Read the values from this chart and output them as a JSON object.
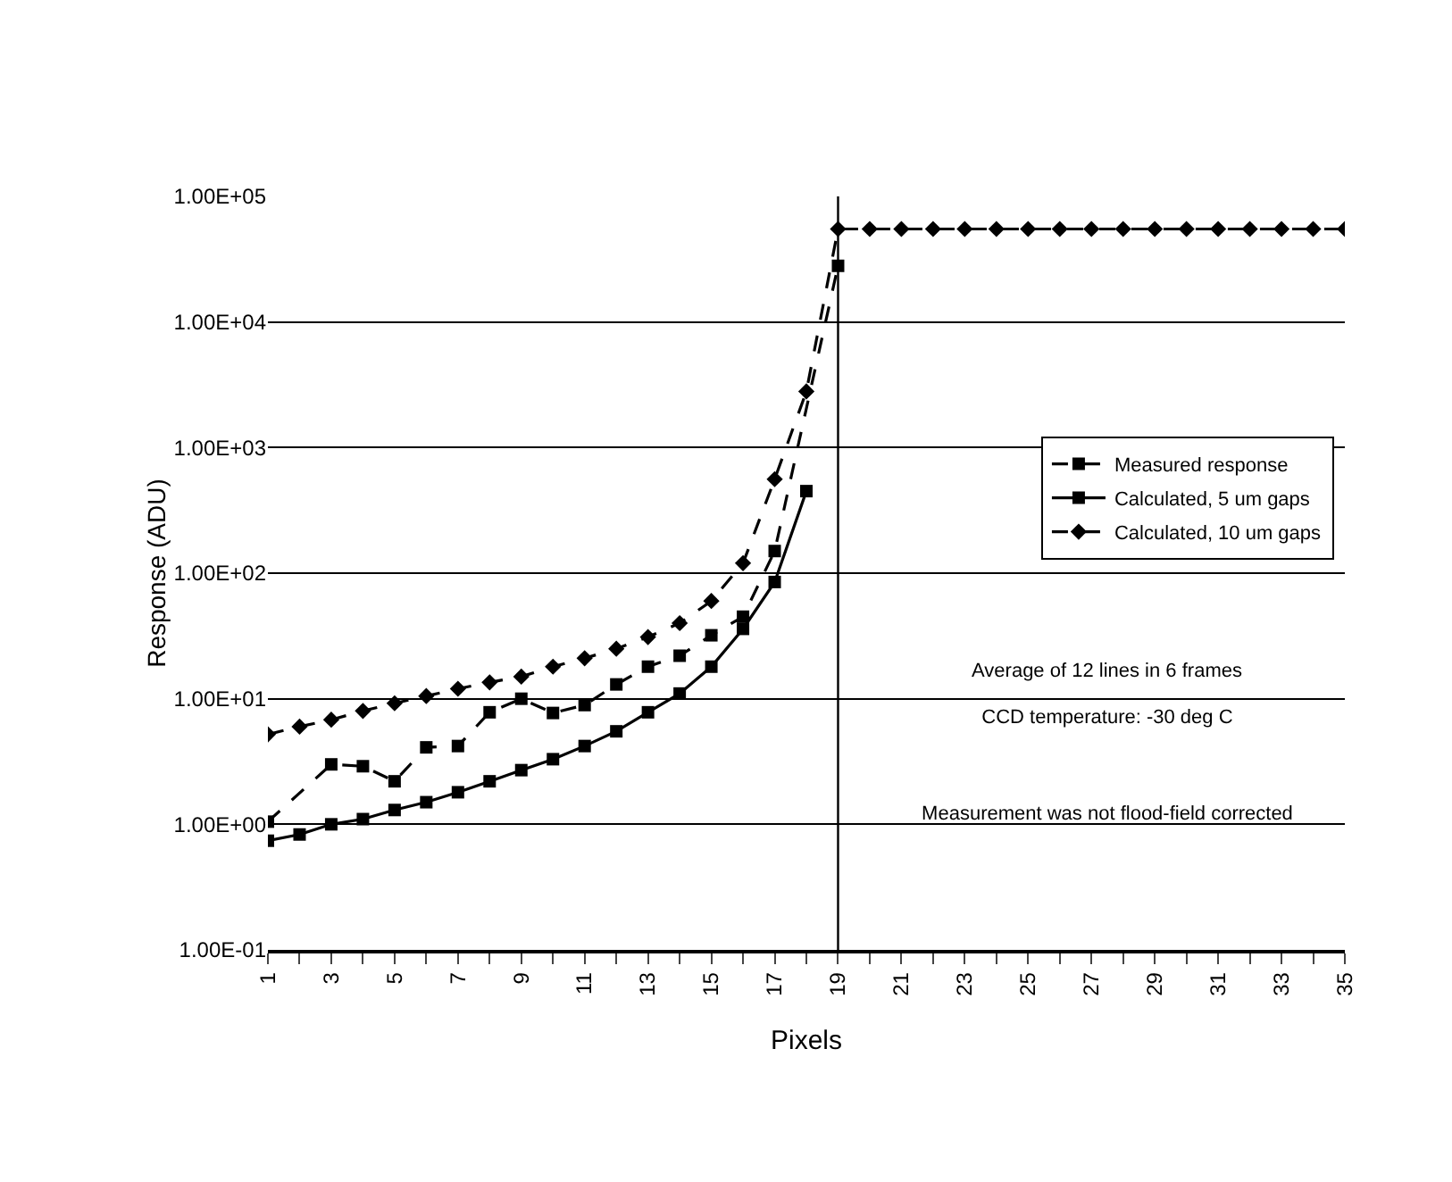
{
  "chart_data": {
    "type": "line",
    "xlabel": "Pixels",
    "ylabel": "Response (ADU)",
    "x": [
      1,
      2,
      3,
      4,
      5,
      6,
      7,
      8,
      9,
      10,
      11,
      12,
      13,
      14,
      15,
      16,
      17,
      18,
      19,
      20,
      21,
      22,
      23,
      24,
      25,
      26,
      27,
      28,
      29,
      30,
      31,
      32,
      33,
      34,
      35
    ],
    "series": [
      {
        "name": "Measured response",
        "color": "#000000",
        "marker": "square",
        "line_style": "dashed",
        "x": [
          1,
          3,
          4,
          5,
          6,
          7,
          8,
          9,
          10,
          11,
          12,
          13,
          14,
          15,
          16,
          17,
          19
        ],
        "values": [
          1.05,
          3,
          2.9,
          2.2,
          4.1,
          4.2,
          7.8,
          10,
          7.7,
          8.9,
          13,
          18,
          22,
          32,
          45,
          150,
          28000
        ]
      },
      {
        "name": "Calculated, 5 um gaps",
        "color": "#000000",
        "marker": "square",
        "line_style": "solid",
        "x": [
          1,
          2,
          3,
          4,
          5,
          6,
          7,
          8,
          9,
          10,
          11,
          12,
          13,
          14,
          15,
          16,
          17,
          18
        ],
        "values": [
          0.74,
          0.83,
          1,
          1.1,
          1.3,
          1.5,
          1.8,
          2.2,
          2.7,
          3.3,
          4.2,
          5.5,
          7.8,
          11,
          18,
          36,
          85,
          450
        ]
      },
      {
        "name": "Calculated, 10 um gaps",
        "color": "#000000",
        "marker": "diamond",
        "line_style": "dashed",
        "values": [
          5.2,
          6,
          6.8,
          8,
          9.2,
          10.5,
          12,
          13.5,
          15,
          18,
          21,
          25,
          31,
          40,
          60,
          120,
          560,
          2800,
          55000,
          55000,
          55000,
          55000,
          55000,
          55000,
          55000,
          55000,
          55000,
          55000,
          55000,
          55000,
          55000,
          55000,
          55000,
          55000,
          55000
        ]
      }
    ],
    "log": "y",
    "ylim": [
      0.1,
      100000
    ],
    "yticks": [
      {
        "value": 0.1,
        "label": "1.00E-01"
      },
      {
        "value": 1,
        "label": "1.00E+00"
      },
      {
        "value": 10,
        "label": "1.00E+01"
      },
      {
        "value": 100,
        "label": "1.00E+02"
      },
      {
        "value": 1000,
        "label": "1.00E+03"
      },
      {
        "value": 10000,
        "label": "1.00E+04"
      },
      {
        "value": 100000,
        "label": "1.00E+05"
      }
    ],
    "xlim": [
      1,
      35
    ],
    "xticks": [
      1,
      {
        "value": 2,
        "label": null
      },
      3,
      {
        "value": 4,
        "label": null
      },
      5,
      {
        "value": 6,
        "label": null
      },
      7,
      {
        "value": 8,
        "label": null
      },
      9,
      {
        "value": 10,
        "label": null
      },
      11,
      {
        "value": 12,
        "label": null
      },
      13,
      {
        "value": 14,
        "label": null
      },
      15,
      {
        "value": 16,
        "label": null
      },
      17,
      {
        "value": 18,
        "label": null
      },
      19,
      {
        "value": 20,
        "label": null
      },
      21,
      {
        "value": 22,
        "label": null
      },
      23,
      {
        "value": 24,
        "label": null
      },
      25,
      {
        "value": 26,
        "label": null
      },
      27,
      {
        "value": 28,
        "label": null
      },
      29,
      {
        "value": 30,
        "label": null
      },
      31,
      {
        "value": 32,
        "label": null
      },
      33,
      {
        "value": 34,
        "label": null
      },
      35
    ],
    "ref_lines": [
      {
        "axis": "x",
        "value": 19,
        "color": "#000000",
        "line_style": "solid"
      }
    ],
    "grid": "y",
    "legend": "right",
    "annotations": [
      "Average of 12 lines in 6 frames",
      "CCD temperature: -30 deg C",
      "Measurement was not flood-field corrected"
    ]
  }
}
